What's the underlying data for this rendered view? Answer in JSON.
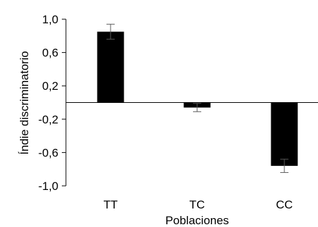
{
  "chart_data": {
    "type": "bar",
    "title": "",
    "xlabel": "Poblaciones",
    "ylabel": "Índie discriminatorio",
    "categories": [
      "TT",
      "TC",
      "CC"
    ],
    "series": [
      {
        "values": [
          0.85,
          -0.06,
          -0.76
        ],
        "errors": [
          0.09,
          0.05,
          0.08
        ],
        "color": "#000000"
      }
    ],
    "ylim": [
      -1.0,
      1.0
    ],
    "yticks": [
      -1.0,
      -0.6,
      -0.2,
      0.2,
      0.6,
      1.0
    ],
    "ytick_labels": [
      "-1,0",
      "-0,6",
      "-0,2",
      "0,2",
      "0,6",
      "1,0"
    ],
    "grid": false,
    "legend": "none"
  }
}
